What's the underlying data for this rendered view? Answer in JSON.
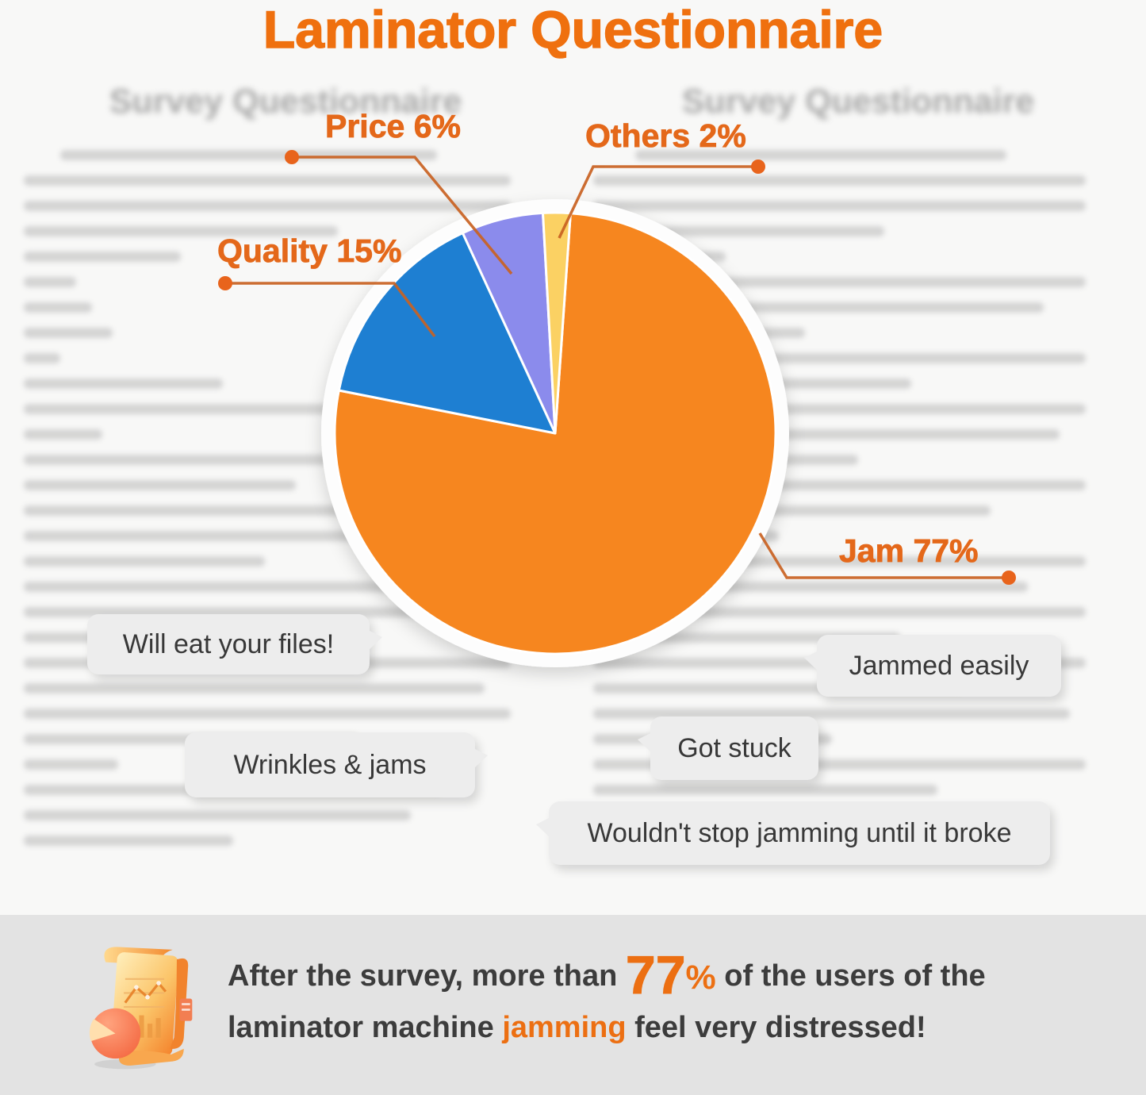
{
  "header": {
    "title": "Laminator Questionnaire",
    "accent_color": "#ef700f"
  },
  "background": {
    "doc_heading": "Survey Questionnaire"
  },
  "chart_data": {
    "type": "pie",
    "title": "Laminator Questionnaire",
    "categories": [
      "Jam",
      "Quality",
      "Price",
      "Others"
    ],
    "values": [
      77,
      15,
      6,
      2
    ],
    "unit": "%",
    "colors": [
      "#f6861f",
      "#1e7fd2",
      "#8b8bec",
      "#fbd163"
    ],
    "start_angle_deg_clockwise_from_top": 4,
    "legend_position": "callouts",
    "callouts": {
      "jam": "Jam 77%",
      "quality": "Quality 15%",
      "price": "Price 6%",
      "others": "Others 2%"
    }
  },
  "quotes": [
    {
      "text": "Will eat your files!"
    },
    {
      "text": "Jammed easily"
    },
    {
      "text": "Wrinkles & jams"
    },
    {
      "text": "Got stuck"
    },
    {
      "text": "Wouldn't stop jamming until it broke"
    }
  ],
  "footer": {
    "line1_pre": "After the survey, more than ",
    "big_number": "77",
    "percent_sign": "%",
    "line1_post": " of the users of the",
    "line2_pre": "laminator machine ",
    "line2_highlight": "jamming",
    "line2_post": " feel very distressed!"
  }
}
